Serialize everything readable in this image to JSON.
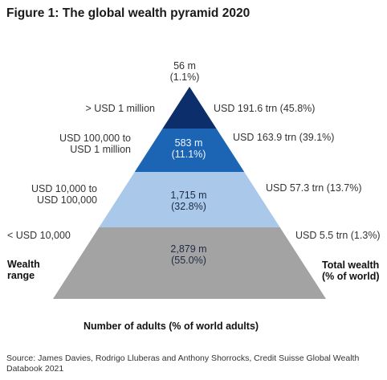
{
  "figure": {
    "title": "Figure 1: The global wealth pyramid 2020",
    "left_axis_label_1": "Wealth",
    "left_axis_label_2": "range",
    "right_axis_label_1": "Total wealth",
    "right_axis_label_2": "(% of world)",
    "bottom_label": "Number of adults (% of world adults)",
    "source_line_1": "Source: James Davies, Rodrigo Lluberas and Anthony Shorrocks, Credit Suisse Global Wealth",
    "source_line_2": "Databook 2021"
  },
  "chart_data": {
    "type": "pyramid",
    "title": "Figure 1: The global wealth pyramid 2020",
    "tiers": [
      {
        "range": "> USD 1 million",
        "adults_m": 56,
        "adults_pct": 1.1,
        "adults_label_1": "56 m",
        "adults_label_2": "(1.1%)",
        "wealth_trn": 191.6,
        "wealth_pct": 45.8,
        "wealth_label": "USD 191.6 trn (45.8%)",
        "color": "#0c2e6b"
      },
      {
        "range_line_1": "USD 100,000 to",
        "range_line_2": "USD 1 million",
        "adults_m": 583,
        "adults_pct": 11.1,
        "adults_label_1": "583 m",
        "adults_label_2": "(11.1%)",
        "wealth_trn": 163.9,
        "wealth_pct": 39.1,
        "wealth_label": "USD 163.9 trn (39.1%)",
        "color": "#1c64b4"
      },
      {
        "range_line_1": "USD 10,000 to",
        "range_line_2": "USD 100,000",
        "adults_m": 1715,
        "adults_pct": 32.8,
        "adults_label_1": "1,715 m",
        "adults_label_2": "(32.8%)",
        "wealth_trn": 57.3,
        "wealth_pct": 13.7,
        "wealth_label": "USD 57.3 trn (13.7%)",
        "color": "#a9c8ea"
      },
      {
        "range": "< USD 10,000",
        "adults_m": 2879,
        "adults_pct": 55.0,
        "adults_label_1": "2,879 m",
        "adults_label_2": "(55.0%)",
        "wealth_trn": 5.5,
        "wealth_pct": 1.3,
        "wealth_label": "USD 5.5 trn (1.3%)",
        "color": "#a3a3a3"
      }
    ]
  }
}
